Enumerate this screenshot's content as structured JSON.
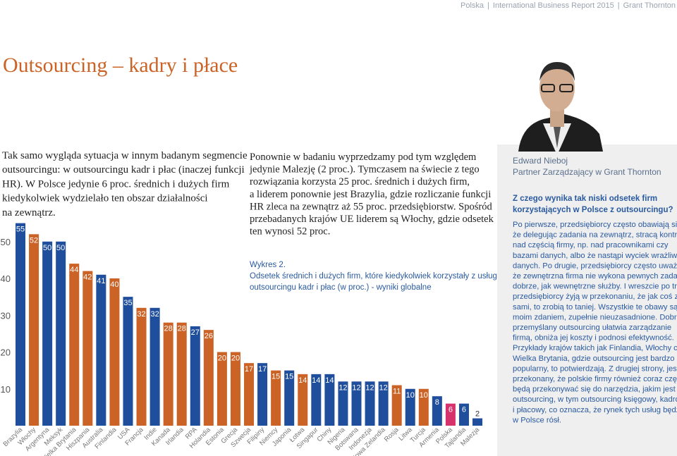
{
  "header": {
    "items": [
      "Polska",
      "International Business Report 2015",
      "Grant Thornton"
    ]
  },
  "title": "Outsourcing – kadry i płace",
  "intro_left": [
    "Tak samo wygląda sytuacja w innym badanym segmencie",
    "outsourcingu: w outsourcingu kadr i płac (inaczej funkcji",
    "HR). W Polsce jedynie 6 proc. średnich i dużych firm",
    "kiedykolwiek wydzielało ten obszar działalności",
    "na zewnątrz."
  ],
  "intro_middle": [
    "Ponownie w badaniu wyprzedzamy pod tym względem",
    "jedynie Malezję (2 proc.). Tymczasem na świecie z tego",
    "rozwiązania korzysta 25 proc. średnich i dużych firm,",
    "a liderem ponownie jest Brazylia, gdzie rozliczanie funkcji",
    "HR zleca na zewnątrz aż 55 proc. przedsiębiorstw. Spośród",
    "przebadanych krajów UE liderem są Włochy, gdzie odsetek",
    "ten wynosi 52 proc."
  ],
  "chart_data": {
    "type": "bar",
    "caption_label": "Wykres 2.",
    "caption": [
      "Odsetek średnich i dużych firm, które kiedykolwiek korzystały z usług",
      "outsourcingu kadr i płac (w proc.) - wyniki globalne"
    ],
    "categories": [
      "Brazylia",
      "Włochy",
      "Argentyna",
      "Meksyk",
      "Wielka Brytania",
      "Hiszpania",
      "Australia",
      "Finlandia",
      "USA",
      "Francja",
      "Indie",
      "Kanada",
      "Irlandia",
      "RPA",
      "Holandia",
      "Estonia",
      "Grecja",
      "Szwecja",
      "Filipiny",
      "Niemcy",
      "Japonia",
      "Łotwa",
      "Singapur",
      "Chiny",
      "Nigeria",
      "Botswana",
      "Indonezja",
      "Nowa Zelandia",
      "Rosja",
      "Litwa",
      "Turcja",
      "Armenia",
      "Polska",
      "Tajlandia",
      "Malezja"
    ],
    "values": [
      55,
      52,
      50,
      50,
      44,
      42,
      41,
      40,
      35,
      32,
      32,
      28,
      28,
      27,
      26,
      20,
      20,
      17,
      17,
      15,
      15,
      14,
      14,
      14,
      12,
      12,
      12,
      12,
      11,
      10,
      10,
      8,
      6,
      6,
      2
    ],
    "colors": [
      "#1f4e9c",
      "#cc6326",
      "#1f4e9c",
      "#1f4e9c",
      "#cc6326",
      "#cc6326",
      "#1f4e9c",
      "#cc6326",
      "#1f4e9c",
      "#cc6326",
      "#1f4e9c",
      "#cc6326",
      "#cc6326",
      "#1f4e9c",
      "#cc6326",
      "#cc6326",
      "#cc6326",
      "#cc6326",
      "#1f4e9c",
      "#cc6326",
      "#1f4e9c",
      "#cc6326",
      "#1f4e9c",
      "#1f4e9c",
      "#1f4e9c",
      "#1f4e9c",
      "#1f4e9c",
      "#1f4e9c",
      "#cc6326",
      "#1f4e9c",
      "#cc6326",
      "#1f4e9c",
      "#d6336c",
      "#1f4e9c",
      "#1f4e9c"
    ],
    "ylim": [
      0,
      57
    ],
    "yticks": [
      10,
      20,
      30,
      40,
      50
    ]
  },
  "sidebar": {
    "name": "Edward Nieboj",
    "role": "Partner Zarządzający w Grant Thornton",
    "question": [
      "Z czego wynika tak niski odsetek firm",
      "korzystających w Polsce z outsourcingu?"
    ],
    "body": [
      "Po pierwsze, przedsiębiorcy często obawiają się,",
      "że delegując zadania na zewnątrz, stracą kontrolę",
      "nad częścią firmy, np. nad pracownikami czy",
      "bazami danych, albo że nastąpi wyciek wrażliwych",
      "danych. Po drugie, przedsiębiorcy często uważają,",
      "że zewnętrzna firma nie wykona pewnych zadań tak",
      "dobrze, jak wewnętrzne służby. I wreszcie po trzecie,",
      "przedsiębiorcy żyją w przekonaniu, że jak coś zrobią",
      "sami, to zrobią to taniej. Wszystkie te obawy są,",
      "moim zdaniem, zupełnie nieuzasadnione. Dobrze",
      "przemyślany outsourcing ułatwia zarządzanie",
      "firmą, obniża jej koszty i podnosi efektywność.",
      "Przykłady krajów takich jak Finlandia, Włochy czy",
      "Wielka Brytania, gdzie outsourcing jest bardzo",
      "popularny, to potwierdzają. Z drugiej strony, jestem",
      "przekonany, że polskie firmy również coraz częściej",
      "będą przekonywać się do narzędzia, jakim jest",
      "outsourcing, w tym outsourcing księgowy, kadrowy",
      "i płacowy, co oznacza, że rynek tych usług będzie",
      "w Polsce rósł."
    ]
  }
}
